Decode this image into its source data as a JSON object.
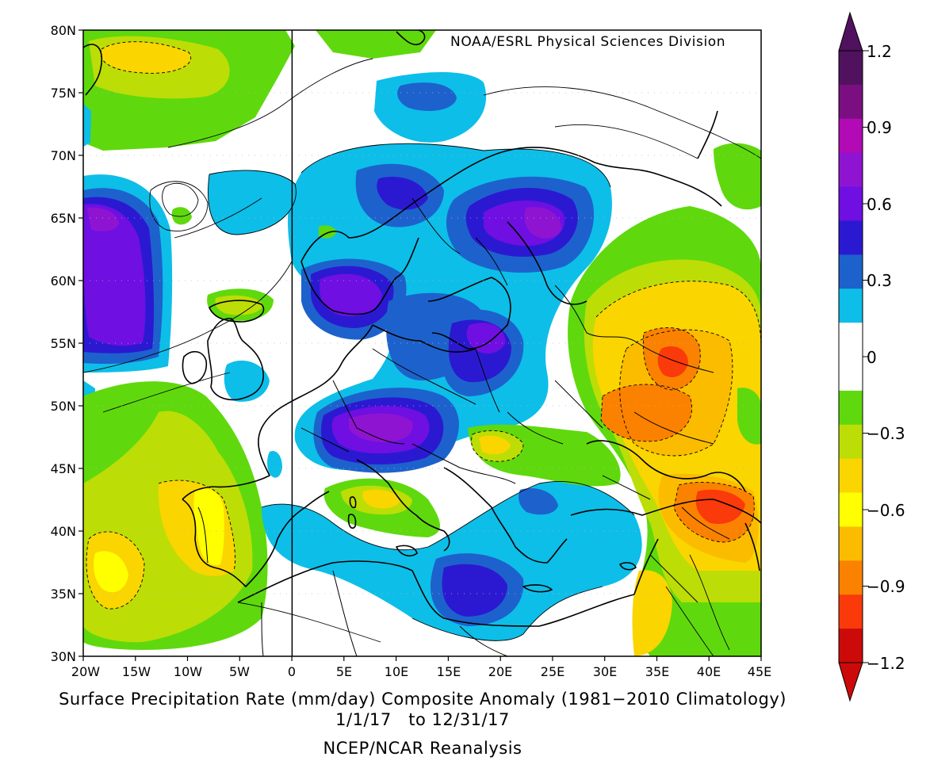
{
  "map": {
    "credit": "NOAA/ESRL Physical Sciences Division",
    "lat_labels": [
      "80N",
      "75N",
      "70N",
      "65N",
      "60N",
      "55N",
      "50N",
      "45N",
      "40N",
      "35N",
      "30N"
    ],
    "lon_labels": [
      "20W",
      "15W",
      "10W",
      "5W",
      "0",
      "5E",
      "10E",
      "15E",
      "20E",
      "25E",
      "30E",
      "35E",
      "40E",
      "45E"
    ],
    "extent": {
      "lon": [
        -20,
        45
      ],
      "lat": [
        30,
        80
      ]
    }
  },
  "colorbar": {
    "labels": [
      "1.2",
      "0.9",
      "0.6",
      "0.3",
      "0",
      "−0.3",
      "−0.6",
      "−0.9",
      "−1.2"
    ],
    "colors": [
      "#50125e",
      "#7b0f82",
      "#b20ab4",
      "#8f14d2",
      "#6f0fe2",
      "#2b19d2",
      "#1d62cc",
      "#0dbee8",
      "#ffffff",
      "#ffffff",
      "#5fd90d",
      "#bddd06",
      "#fad500",
      "#ffff00",
      "#fbbc00",
      "#fb8200",
      "#fa3a0a",
      "#cc0a0a"
    ]
  },
  "footer": {
    "title": "Surface Precipitation Rate (mm/day) Composite Anomaly (1981−2010 Climatology)",
    "dates": "1/1/17   to 12/31/17",
    "source": "NCEP/NCAR Reanalysis"
  }
}
